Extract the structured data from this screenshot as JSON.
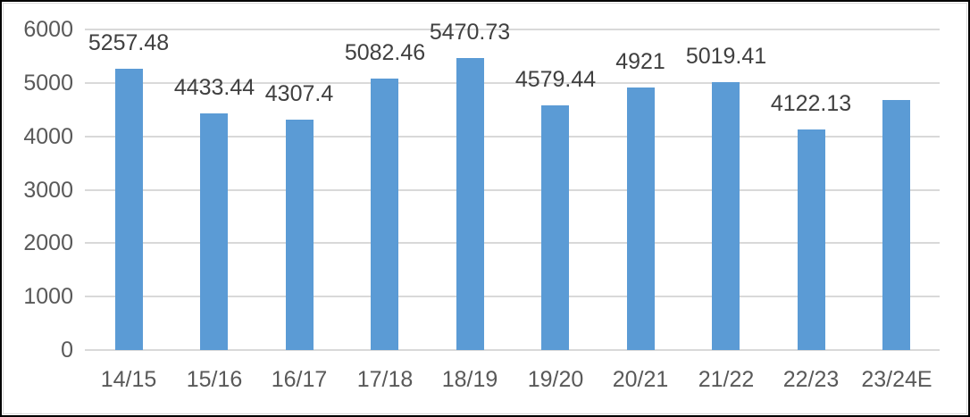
{
  "chart_data": {
    "type": "bar",
    "title": "",
    "xlabel": "",
    "ylabel": "",
    "categories": [
      "14/15",
      "15/16",
      "16/17",
      "17/18",
      "18/19",
      "19/20",
      "20/21",
      "21/22",
      "22/23",
      "23/24E"
    ],
    "values": [
      5257.48,
      4433.44,
      4307.4,
      5082.46,
      5470.73,
      4579.44,
      4921,
      5019.41,
      4122.13,
      4680
    ],
    "data_labels": [
      "5257.48",
      "4433.44",
      "4307.4",
      "5082.46",
      "5470.73",
      "4579.44",
      "4921",
      "5019.41",
      "4122.13",
      ""
    ],
    "yticks": [
      "0",
      "1000",
      "2000",
      "3000",
      "4000",
      "5000",
      "6000"
    ],
    "ytick_values": [
      0,
      1000,
      2000,
      3000,
      4000,
      5000,
      6000
    ],
    "ylim": [
      0,
      6000
    ],
    "grid": true,
    "legend": false,
    "colors": {
      "bar": "#5B9BD5",
      "gridline": "#D9D9D9",
      "axis_text": "#595959",
      "data_label_text": "#404040",
      "frame_border": "#000000",
      "chart_border": "#D9D9D9",
      "background": "#FFFFFF"
    }
  }
}
